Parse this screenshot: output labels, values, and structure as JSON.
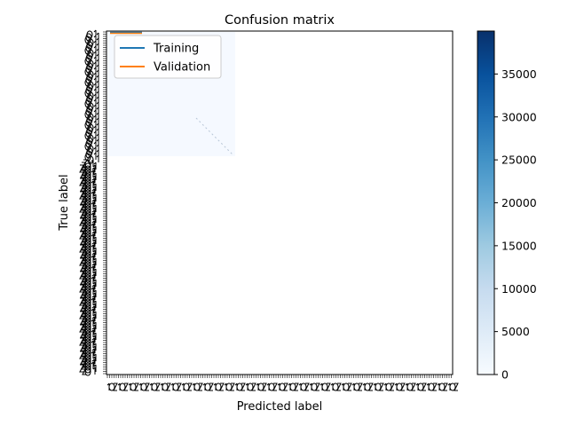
{
  "chart_data": {
    "type": "heatmap",
    "title": "Confusion matrix",
    "xlabel": "Predicted label",
    "ylabel": "True label",
    "colormap": "Blues",
    "colorbar": {
      "min": 0,
      "max": 40000,
      "ticks": [
        0,
        5000,
        10000,
        15000,
        20000,
        25000,
        30000,
        35000
      ]
    },
    "matrix_note": "values not legible; overlaid tick labels are illegible",
    "legend": {
      "placement": "top-left",
      "entries": [
        {
          "label": "Training",
          "color": "#1f77b4"
        },
        {
          "label": "Validation",
          "color": "#ff7f0e"
        }
      ]
    }
  }
}
